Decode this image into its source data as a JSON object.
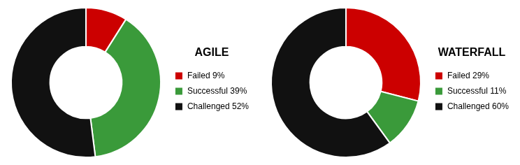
{
  "chart_data": [
    {
      "type": "doughnut",
      "title": "AGILE",
      "categories": [
        "Failed 9%",
        "Successful 39%",
        "Challenged 52%"
      ],
      "values": [
        9,
        39,
        52
      ],
      "colors": [
        "#cc0000",
        "#3a9a3a",
        "#111111"
      ],
      "legend": "right"
    },
    {
      "type": "doughnut",
      "title": "WATERFALL",
      "categories": [
        "Failed 29%",
        "Successful 11%",
        "Challenged 60%"
      ],
      "values": [
        29,
        11,
        60
      ],
      "colors": [
        "#cc0000",
        "#3a9a3a",
        "#111111"
      ],
      "legend": "right"
    }
  ]
}
